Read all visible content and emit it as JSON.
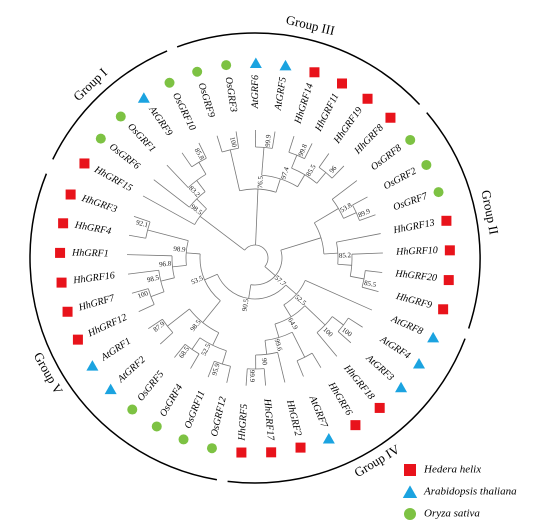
{
  "groups": [
    "Group I",
    "Group III",
    "Group II",
    "Group IV",
    "Group V"
  ],
  "legend": [
    {
      "label": "Hedera helix",
      "color": "#e8131b",
      "shape": "square"
    },
    {
      "label": "Arabidopsis thaliana",
      "color": "#1ba3e0",
      "shape": "triangle"
    },
    {
      "label": "Oryza sativa",
      "color": "#7dc243",
      "shape": "circle"
    }
  ],
  "tree": {
    "children": [
      {
        "support": 98.5,
        "children": [
          {
            "label": "HhGRF15",
            "species": 0
          },
          {
            "support": 83.2,
            "children": [
              {
                "label": "OsGRF6",
                "species": 2
              },
              {
                "children": [
                  {
                    "label": "OsGRF1",
                    "species": 2
                  },
                  {
                    "support": 85.8,
                    "children": [
                      {
                        "label": "AtGRF9",
                        "species": 1
                      },
                      {
                        "label": "OsGRF10",
                        "species": 2
                      }
                    ]
                  }
                ]
              }
            ]
          }
        ]
      },
      {
        "support": 76.5,
        "children": [
          {
            "support": 100,
            "children": [
              {
                "label": "OsGRF9",
                "species": 2
              },
              {
                "label": "OsGRF3",
                "species": 2
              }
            ]
          },
          {
            "support": 97.4,
            "children": [
              {
                "support": 99.9,
                "children": [
                  {
                    "label": "AtGRF6",
                    "species": 1
                  },
                  {
                    "label": "AtGRF5",
                    "species": 1
                  }
                ]
              },
              {
                "support": 85.5,
                "children": [
                  {
                    "support": 99.8,
                    "children": [
                      {
                        "label": "HhGRF14",
                        "species": 0
                      },
                      {
                        "label": "HhGRF11",
                        "species": 0
                      }
                    ]
                  },
                  {
                    "support": 96.0,
                    "children": [
                      {
                        "label": "HhGRF19",
                        "species": 0
                      },
                      {
                        "label": "HhGRF8",
                        "species": 0
                      }
                    ]
                  }
                ]
              }
            ]
          }
        ]
      },
      {
        "support": 57.7,
        "children": [
          {
            "children": [
              {
                "support": 53.8,
                "children": [
                  {
                    "label": "OsGRF8",
                    "species": 2
                  },
                  {
                    "support": 89.9,
                    "children": [
                      {
                        "label": "OsGRF2",
                        "species": 2
                      },
                      {
                        "label": "OsGRF7",
                        "species": 2
                      }
                    ]
                  }
                ]
              },
              {
                "support": 85.2,
                "children": [
                  {
                    "label": "HhGRF13",
                    "species": 0
                  },
                  {
                    "children": [
                      {
                        "label": "HhGRF10",
                        "species": 0
                      },
                      {
                        "support": 85.5,
                        "children": [
                          {
                            "label": "HhGRF20",
                            "species": 0
                          },
                          {
                            "label": "HhGRF9",
                            "species": 0
                          }
                        ]
                      }
                    ]
                  }
                ]
              }
            ]
          },
          {
            "support": 90.5,
            "children": [
              {
                "support": 52.5,
                "children": [
                  {
                    "label": "AtGRF8",
                    "species": 1
                  },
                  {
                    "support": 64.9,
                    "children": [
                      {
                        "support": 100,
                        "children": [
                          {
                            "support": 100,
                            "children": [
                              {
                                "label": "AtGRF4",
                                "species": 1
                              },
                              {
                                "label": "AtGRF3",
                                "species": 1
                              }
                            ]
                          },
                          {
                            "label": "HhGRF18",
                            "species": 0
                          }
                        ]
                      },
                      {
                        "support": 99.6,
                        "children": [
                          {
                            "children": [
                              {
                                "label": "HhGRF6",
                                "species": 0
                              },
                              {
                                "label": "AtGRF7",
                                "species": 1
                              }
                            ]
                          },
                          {
                            "support": 90.0,
                            "children": [
                              {
                                "label": "HhGRF2",
                                "species": 0
                              },
                              {
                                "support": 99.9,
                                "children": [
                                  {
                                    "label": "HhGRF17",
                                    "species": 0
                                  },
                                  {
                                    "label": "HhGRF5",
                                    "species": 0
                                  }
                                ]
                              }
                            ]
                          }
                        ]
                      }
                    ]
                  }
                ]
              },
              {
                "support": 53.5,
                "children": [
                  {
                    "support": 98.5,
                    "children": [
                      {
                        "support": 52.5,
                        "children": [
                          {
                            "support": 95.9,
                            "children": [
                              {
                                "label": "OsGRF12",
                                "species": 2
                              },
                              {
                                "label": "OsGRF11",
                                "species": 2
                              }
                            ]
                          },
                          {
                            "support": 68.5,
                            "children": [
                              {
                                "label": "OsGRF4",
                                "species": 2
                              },
                              {
                                "label": "OsGRF5",
                                "species": 2
                              }
                            ]
                          }
                        ]
                      },
                      {
                        "support": 87.9,
                        "children": [
                          {
                            "label": "AtGRF2",
                            "species": 1
                          },
                          {
                            "label": "AtGRF1",
                            "species": 1
                          }
                        ]
                      }
                    ]
                  },
                  {
                    "support": 98.9,
                    "children": [
                      {
                        "support": 96.8,
                        "children": [
                          {
                            "support": 98.5,
                            "children": [
                              {
                                "support": 100,
                                "children": [
                                  {
                                    "label": "HhGRF12",
                                    "species": 0
                                  },
                                  {
                                    "label": "HhGRF7",
                                    "species": 0
                                  }
                                ]
                              },
                              {
                                "label": "HhGRF16",
                                "species": 0
                              }
                            ]
                          },
                          {
                            "label": "HhGRF1",
                            "species": 0
                          }
                        ]
                      },
                      {
                        "support": 92.1,
                        "children": [
                          {
                            "label": "HhGRF4",
                            "species": 0
                          },
                          {
                            "label": "HhGRF3",
                            "species": 0
                          }
                        ]
                      }
                    ]
                  }
                ]
              }
            ]
          }
        ]
      }
    ]
  }
}
